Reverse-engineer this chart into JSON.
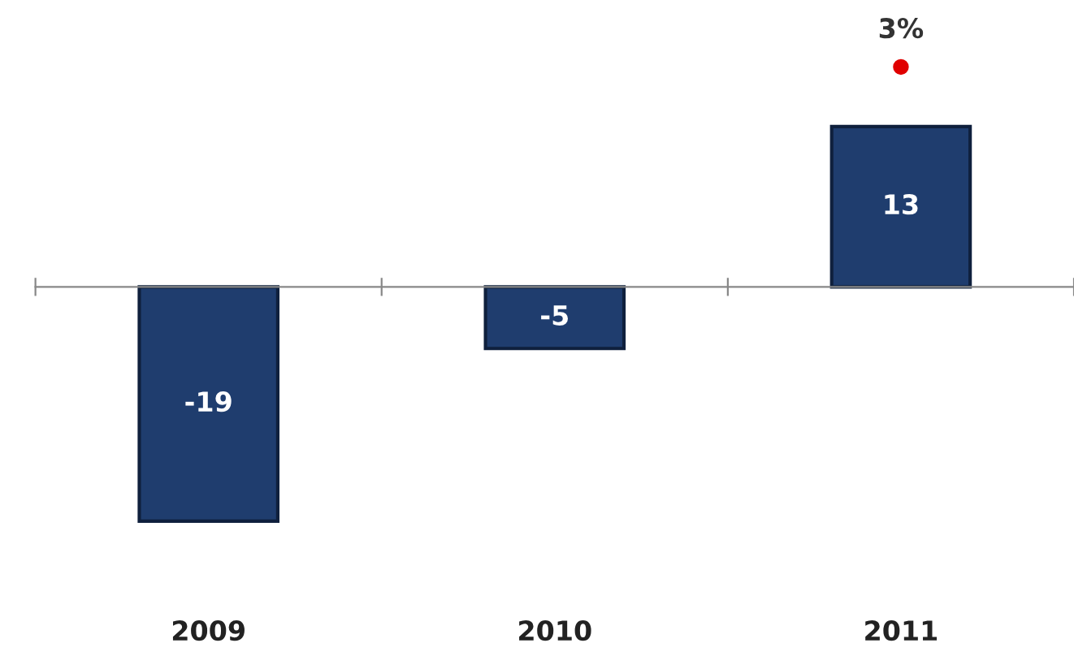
{
  "chart_data": {
    "type": "bar",
    "categories": [
      "2009",
      "2010",
      "2011"
    ],
    "series": [
      {
        "color": "#1f3d6e",
        "values": [
          -19,
          -5,
          13
        ]
      }
    ],
    "annotations": [
      "3%"
    ],
    "data_labels": true,
    "tick_labels": "x"
  }
}
